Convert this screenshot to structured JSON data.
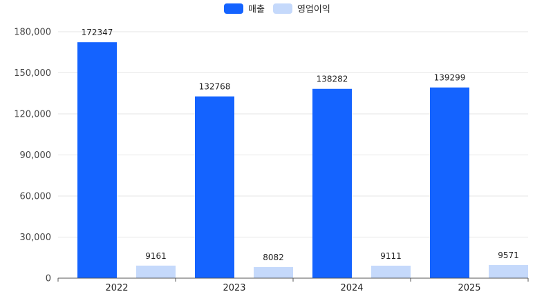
{
  "chart_data": {
    "type": "bar",
    "title": "",
    "xlabel": "",
    "ylabel": "",
    "categories": [
      "2022",
      "2023",
      "2024",
      "2025"
    ],
    "series": [
      {
        "name": "매출",
        "values": [
          172347,
          132768,
          138282,
          139299
        ],
        "color": "#1463ff"
      },
      {
        "name": "영업이익",
        "values": [
          9161,
          8082,
          9111,
          9571
        ],
        "color": "#c5d9fb"
      }
    ],
    "ylim": [
      0,
      180000
    ],
    "yticks": [
      0,
      30000,
      60000,
      90000,
      120000,
      150000,
      180000
    ],
    "ytick_labels": [
      "0",
      "30,000",
      "60,000",
      "90,000",
      "120,000",
      "150,000",
      "180,000"
    ],
    "grid": true,
    "legend_position": "top-center",
    "show_data_labels": true
  }
}
